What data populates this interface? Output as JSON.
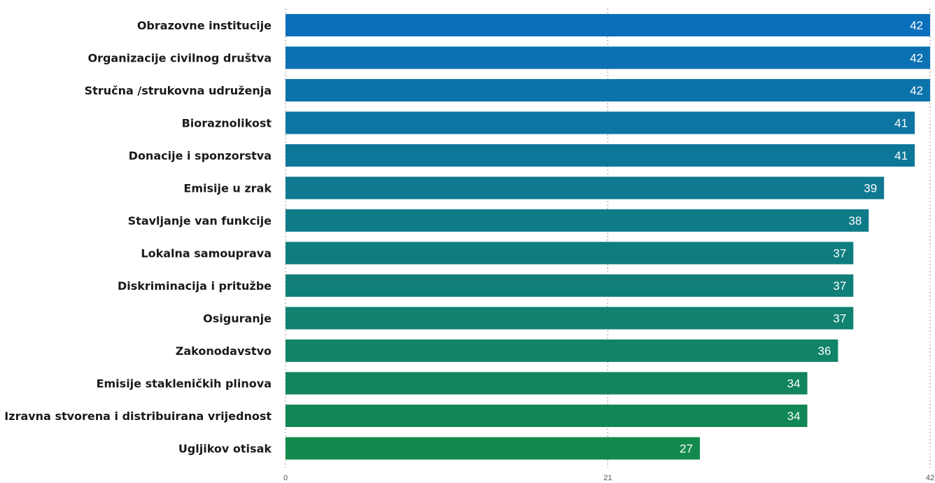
{
  "chart_data": {
    "type": "bar",
    "orientation": "horizontal",
    "title": "",
    "xlabel": "",
    "ylabel": "",
    "categories": [
      "Obrazovne institucije",
      "Organizacije civilnog društva",
      "Stručna /strukovna udruženja",
      "Bioraznolikost",
      "Donacije i sponzorstva",
      "Emisije u zrak",
      "Stavljanje van funkcije",
      "Lokalna samouprava",
      "Diskriminacija i pritužbe",
      "Osiguranje",
      "Zakonodavstvo",
      "Emisije stakleničkih plinova",
      "Izravna stvorena i distribuirana vrijednost",
      "Ugljikov otisak"
    ],
    "values": [
      42,
      42,
      42,
      41,
      41,
      39,
      38,
      37,
      37,
      37,
      36,
      34,
      34,
      27
    ],
    "xlim": [
      0,
      42
    ],
    "ticks": [
      {
        "value": 0,
        "label": "0"
      },
      {
        "value": 21,
        "label": "21"
      },
      {
        "value": 42,
        "label": "42"
      }
    ],
    "grid": true,
    "legend": "none",
    "colors": {
      "start": "#0b6fbb",
      "end": "#13894e",
      "value_text": "#ffffff",
      "grid": "#9a9a9a"
    }
  }
}
